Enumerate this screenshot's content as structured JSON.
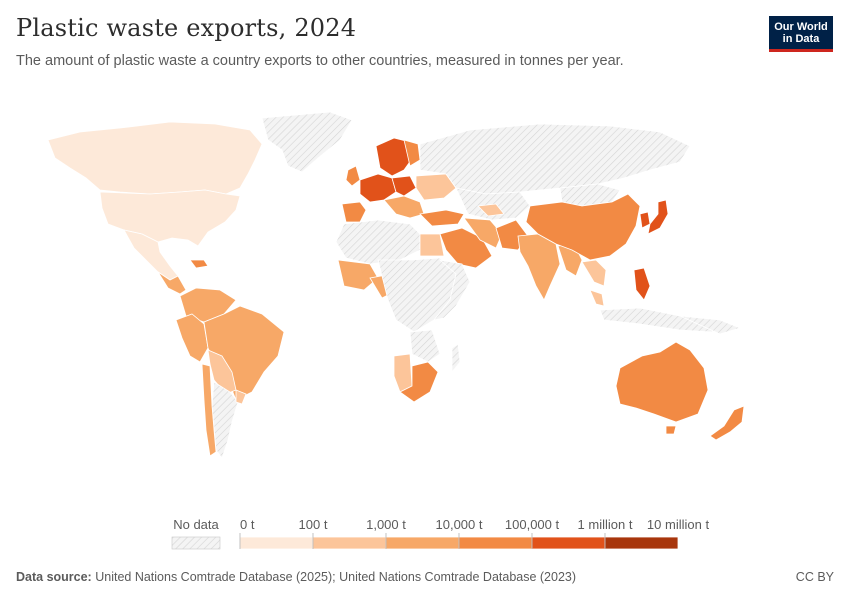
{
  "header": {
    "title": "Plastic waste exports, 2024",
    "subtitle": "The amount of plastic waste a country exports to other countries, measured in tonnes per year."
  },
  "logo": {
    "line1": "Our World",
    "line2": "in Data"
  },
  "legend": {
    "no_data_label": "No data",
    "bins": [
      {
        "label": "0 t",
        "color": "#fde9d9"
      },
      {
        "label": "100 t",
        "color": "#fcc59a"
      },
      {
        "label": "1,000 t",
        "color": "#f7a867"
      },
      {
        "label": "10,000 t",
        "color": "#f28a44"
      },
      {
        "label": "100,000 t",
        "color": "#e1521a"
      },
      {
        "label": "1 million t",
        "color": "#a8360c"
      },
      {
        "label": "10 million t",
        "color": null
      }
    ]
  },
  "footer": {
    "source_label": "Data source:",
    "source_text": "United Nations Comtrade Database (2025); United Nations Comtrade Database (2023)",
    "license": "CC BY"
  },
  "colors": {
    "bin_0": "#fde9d9",
    "bin_1": "#fcc59a",
    "bin_2": "#f7a867",
    "bin_3": "#f28a44",
    "bin_4": "#e1521a",
    "bin_5": "#a8360c",
    "no_data": "#f2f2f2",
    "border": "#ffffff"
  }
}
